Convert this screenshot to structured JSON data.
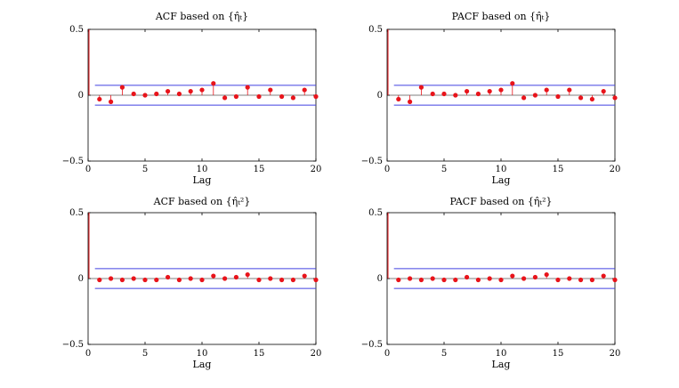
{
  "chart_data": [
    {
      "type": "stem",
      "title": "ACF based on {η̂ₜ}",
      "xlabel": "Lag",
      "ylabel": "",
      "xlim": [
        0,
        20
      ],
      "ylim": [
        -0.5,
        0.5
      ],
      "xticks": [
        "0",
        "5",
        "10",
        "15",
        "20"
      ],
      "yticks": [
        "0.5",
        "0",
        "−0.5"
      ],
      "conf_bounds": [
        0.075,
        -0.075
      ],
      "x": [
        1,
        2,
        3,
        4,
        5,
        6,
        7,
        8,
        9,
        10,
        11,
        12,
        13,
        14,
        15,
        16,
        17,
        18,
        19,
        20
      ],
      "values": [
        -0.03,
        -0.05,
        0.06,
        0.01,
        0.0,
        0.01,
        0.03,
        0.01,
        0.03,
        0.04,
        0.09,
        -0.02,
        -0.01,
        0.06,
        -0.01,
        0.04,
        -0.01,
        -0.02,
        0.04,
        -0.01
      ]
    },
    {
      "type": "stem",
      "title": "PACF based on {η̂ₜ}",
      "xlabel": "Lag",
      "ylabel": "",
      "xlim": [
        0,
        20
      ],
      "ylim": [
        -0.5,
        0.5
      ],
      "xticks": [
        "0",
        "5",
        "10",
        "15",
        "20"
      ],
      "yticks": [
        "0.5",
        "0",
        "−0.5"
      ],
      "conf_bounds": [
        0.075,
        -0.075
      ],
      "x": [
        1,
        2,
        3,
        4,
        5,
        6,
        7,
        8,
        9,
        10,
        11,
        12,
        13,
        14,
        15,
        16,
        17,
        18,
        19,
        20
      ],
      "values": [
        -0.03,
        -0.05,
        0.06,
        0.01,
        0.01,
        0.0,
        0.03,
        0.01,
        0.03,
        0.04,
        0.09,
        -0.02,
        0.0,
        0.04,
        -0.01,
        0.04,
        -0.02,
        -0.03,
        0.03,
        -0.02
      ]
    },
    {
      "type": "stem",
      "title": "ACF based on {η̂ₜ²}",
      "xlabel": "Lag",
      "ylabel": "",
      "xlim": [
        0,
        20
      ],
      "ylim": [
        -0.5,
        0.5
      ],
      "xticks": [
        "0",
        "5",
        "10",
        "15",
        "20"
      ],
      "yticks": [
        "0.5",
        "0",
        "−0.5"
      ],
      "conf_bounds": [
        0.075,
        -0.075
      ],
      "x": [
        1,
        2,
        3,
        4,
        5,
        6,
        7,
        8,
        9,
        10,
        11,
        12,
        13,
        14,
        15,
        16,
        17,
        18,
        19,
        20
      ],
      "values": [
        -0.01,
        0.0,
        -0.01,
        0.0,
        -0.01,
        -0.01,
        0.01,
        -0.01,
        0.0,
        -0.01,
        0.02,
        0.0,
        0.01,
        0.03,
        -0.01,
        0.0,
        -0.01,
        -0.01,
        0.02,
        -0.01
      ]
    },
    {
      "type": "stem",
      "title": "PACF based on {η̂ₜ²}",
      "xlabel": "Lag",
      "ylabel": "",
      "xlim": [
        0,
        20
      ],
      "ylim": [
        -0.5,
        0.5
      ],
      "xticks": [
        "0",
        "5",
        "10",
        "15",
        "20"
      ],
      "yticks": [
        "0.5",
        "0",
        "−0.5"
      ],
      "conf_bounds": [
        0.075,
        -0.075
      ],
      "x": [
        1,
        2,
        3,
        4,
        5,
        6,
        7,
        8,
        9,
        10,
        11,
        12,
        13,
        14,
        15,
        16,
        17,
        18,
        19,
        20
      ],
      "values": [
        -0.01,
        0.0,
        -0.01,
        0.0,
        -0.01,
        -0.01,
        0.01,
        -0.01,
        0.0,
        -0.01,
        0.02,
        0.0,
        0.01,
        0.03,
        -0.01,
        0.0,
        -0.01,
        -0.01,
        0.02,
        -0.01
      ]
    }
  ],
  "colors": {
    "stem": "#e8141b",
    "bound": "#4040e0",
    "axis": "#000000"
  }
}
